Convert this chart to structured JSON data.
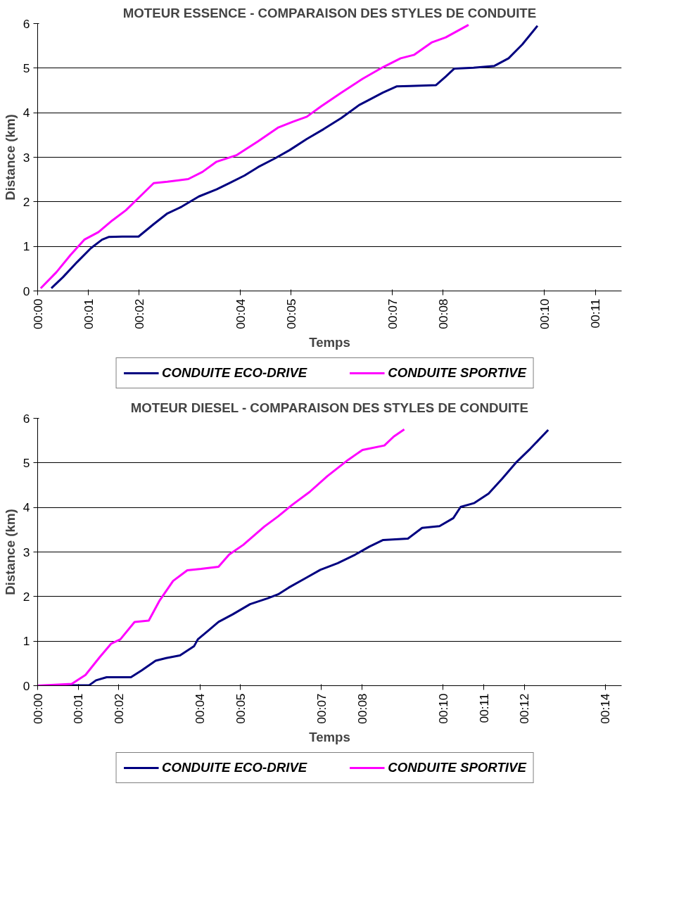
{
  "chart_data": [
    {
      "type": "line",
      "title": "MOTEUR ESSENCE - COMPARAISON DES STYLES DE CONDUITE",
      "xlabel": "Temps",
      "ylabel": "Distance (km)",
      "xlim": [
        0,
        11.52
      ],
      "xticks": [
        {
          "value": 0,
          "label": "00:00"
        },
        {
          "value": 1,
          "label": "00:01"
        },
        {
          "value": 2,
          "label": "00:02"
        },
        {
          "value": 4,
          "label": "00:04"
        },
        {
          "value": 5,
          "label": "00:05"
        },
        {
          "value": 7,
          "label": "00:07"
        },
        {
          "value": 8,
          "label": "00:08"
        },
        {
          "value": 10,
          "label": "00:10"
        },
        {
          "value": 11,
          "label": "00:11"
        }
      ],
      "ylim": [
        0,
        6
      ],
      "yticks": [
        0,
        1,
        2,
        3,
        4,
        5,
        6
      ],
      "grid": "y",
      "legend": "bottom",
      "series": [
        {
          "name": "CONDUITE ECO-DRIVE",
          "color": "#000080",
          "x": [
            0.27,
            0.5,
            0.78,
            1.05,
            1.27,
            1.4,
            1.67,
            1.99,
            2.29,
            2.56,
            2.84,
            3.18,
            3.53,
            3.8,
            4.08,
            4.35,
            4.69,
            4.97,
            5.31,
            5.64,
            5.99,
            6.34,
            6.54,
            6.81,
            7.08,
            7.34,
            7.86,
            8.05,
            8.22,
            8.6,
            9.01,
            9.29,
            9.56,
            9.86
          ],
          "values": [
            0.06,
            0.31,
            0.65,
            0.96,
            1.15,
            1.21,
            1.22,
            1.22,
            1.5,
            1.74,
            1.89,
            2.12,
            2.28,
            2.43,
            2.59,
            2.78,
            2.98,
            3.16,
            3.41,
            3.63,
            3.88,
            4.17,
            4.29,
            4.45,
            4.59,
            4.6,
            4.62,
            4.81,
            4.99,
            5.01,
            5.05,
            5.22,
            5.53,
            5.95
          ]
        },
        {
          "name": "CONDUITE SPORTIVE",
          "color": "#ff00ff",
          "x": [
            0.06,
            0.37,
            0.65,
            0.92,
            1.2,
            1.47,
            1.74,
            2.02,
            2.29,
            2.56,
            2.97,
            3.25,
            3.53,
            3.93,
            4.35,
            4.75,
            5.04,
            5.31,
            5.59,
            5.99,
            6.41,
            6.81,
            7.16,
            7.43,
            7.78,
            8.05,
            8.5
          ],
          "values": [
            0.06,
            0.42,
            0.81,
            1.15,
            1.32,
            1.58,
            1.81,
            2.12,
            2.42,
            2.45,
            2.51,
            2.67,
            2.9,
            3.05,
            3.36,
            3.67,
            3.8,
            3.91,
            4.14,
            4.45,
            4.76,
            5.02,
            5.22,
            5.3,
            5.58,
            5.69,
            5.97
          ]
        }
      ]
    },
    {
      "type": "line",
      "title": "MOTEUR DIESEL - COMPARAISON DES STYLES DE CONDUITE",
      "xlabel": "Temps",
      "ylabel": "Distance (km)",
      "xlim": [
        0,
        14.4
      ],
      "xticks": [
        {
          "value": 0,
          "label": "00:00"
        },
        {
          "value": 1,
          "label": "00:01"
        },
        {
          "value": 2,
          "label": "00:02"
        },
        {
          "value": 4,
          "label": "00:04"
        },
        {
          "value": 5,
          "label": "00:05"
        },
        {
          "value": 7,
          "label": "00:07"
        },
        {
          "value": 8,
          "label": "00:08"
        },
        {
          "value": 10,
          "label": "00:10"
        },
        {
          "value": 11,
          "label": "00:11"
        },
        {
          "value": 12,
          "label": "00:12"
        },
        {
          "value": 14,
          "label": "00:14"
        }
      ],
      "ylim": [
        0,
        6
      ],
      "yticks": [
        0,
        1,
        2,
        3,
        4,
        5,
        6
      ],
      "grid": "y",
      "legend": "bottom",
      "series": [
        {
          "name": "CONDUITE ECO-DRIVE",
          "color": "#000080",
          "x": [
            0,
            1.27,
            1.44,
            1.7,
            2.3,
            2.56,
            2.91,
            3.17,
            3.51,
            3.86,
            3.95,
            4.2,
            4.46,
            4.81,
            5.24,
            5.67,
            5.93,
            6.19,
            6.62,
            6.97,
            7.4,
            7.83,
            8.18,
            8.52,
            9.13,
            9.48,
            9.91,
            10.25,
            10.43,
            10.77,
            11.12,
            11.46,
            11.81,
            12.15,
            12.59
          ],
          "values": [
            0,
            0.01,
            0.12,
            0.19,
            0.19,
            0.34,
            0.56,
            0.62,
            0.68,
            0.89,
            1.04,
            1.23,
            1.43,
            1.6,
            1.83,
            1.96,
            2.05,
            2.2,
            2.42,
            2.6,
            2.75,
            2.94,
            3.12,
            3.27,
            3.3,
            3.54,
            3.58,
            3.76,
            4.01,
            4.1,
            4.31,
            4.65,
            5.02,
            5.32,
            5.74
          ]
        },
        {
          "name": "CONDUITE SPORTIVE",
          "color": "#ff00ff",
          "x": [
            0,
            0.84,
            1.18,
            1.53,
            1.81,
            2.04,
            2.39,
            2.74,
            3.0,
            3.34,
            3.69,
            4.03,
            4.46,
            4.72,
            5.07,
            5.59,
            5.93,
            6.28,
            6.71,
            7.14,
            7.66,
            8.01,
            8.55,
            8.78,
            9.04
          ],
          "values": [
            0,
            0.04,
            0.24,
            0.64,
            0.94,
            1.04,
            1.43,
            1.46,
            1.9,
            2.35,
            2.59,
            2.62,
            2.67,
            2.94,
            3.16,
            3.57,
            3.8,
            4.06,
            4.35,
            4.7,
            5.07,
            5.29,
            5.39,
            5.59,
            5.75
          ]
        }
      ]
    }
  ]
}
